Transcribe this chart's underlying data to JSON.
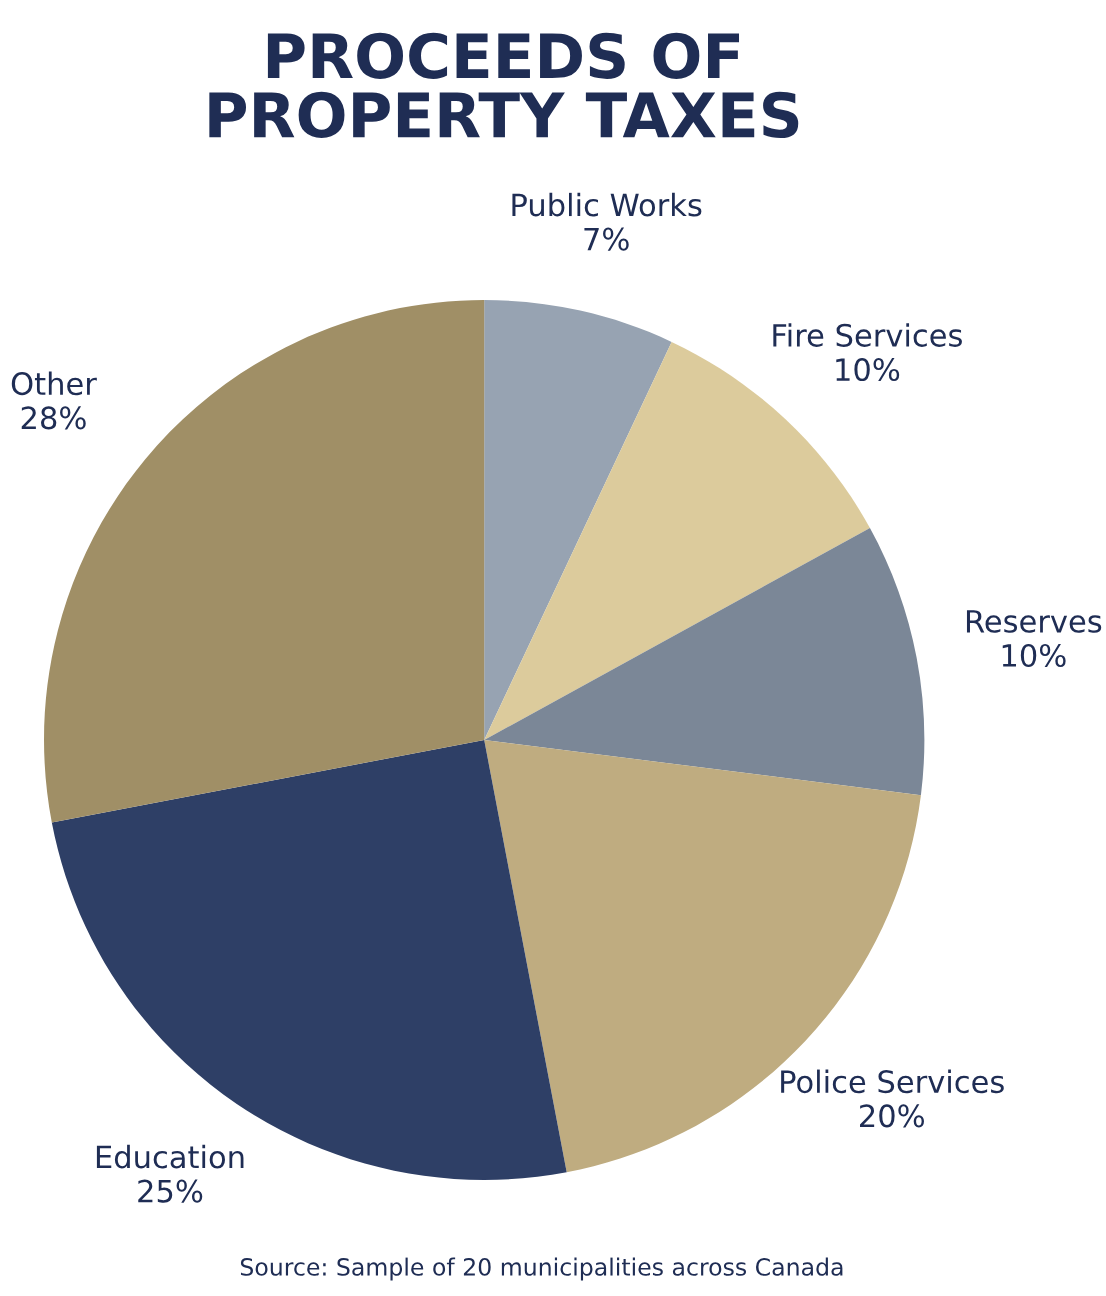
{
  "chart_data": {
    "type": "pie",
    "title": "PROCEEDS OF\nPROPERTY TAXES",
    "categories": [
      "Public Works",
      "Fire Services",
      "Reserves",
      "Police Services",
      "Education",
      "Other"
    ],
    "values": [
      7,
      10,
      10,
      20,
      25,
      28
    ],
    "colors": [
      "#97a3b2",
      "#dccb9c",
      "#7b8797",
      "#bfac80",
      "#2e3f66",
      "#a08f66"
    ],
    "value_labels": [
      "7%",
      "10%",
      "10%",
      "20%",
      "25%",
      "28%"
    ],
    "annotations": [
      "Source: Sample of 20 municipalities across Canada"
    ]
  }
}
